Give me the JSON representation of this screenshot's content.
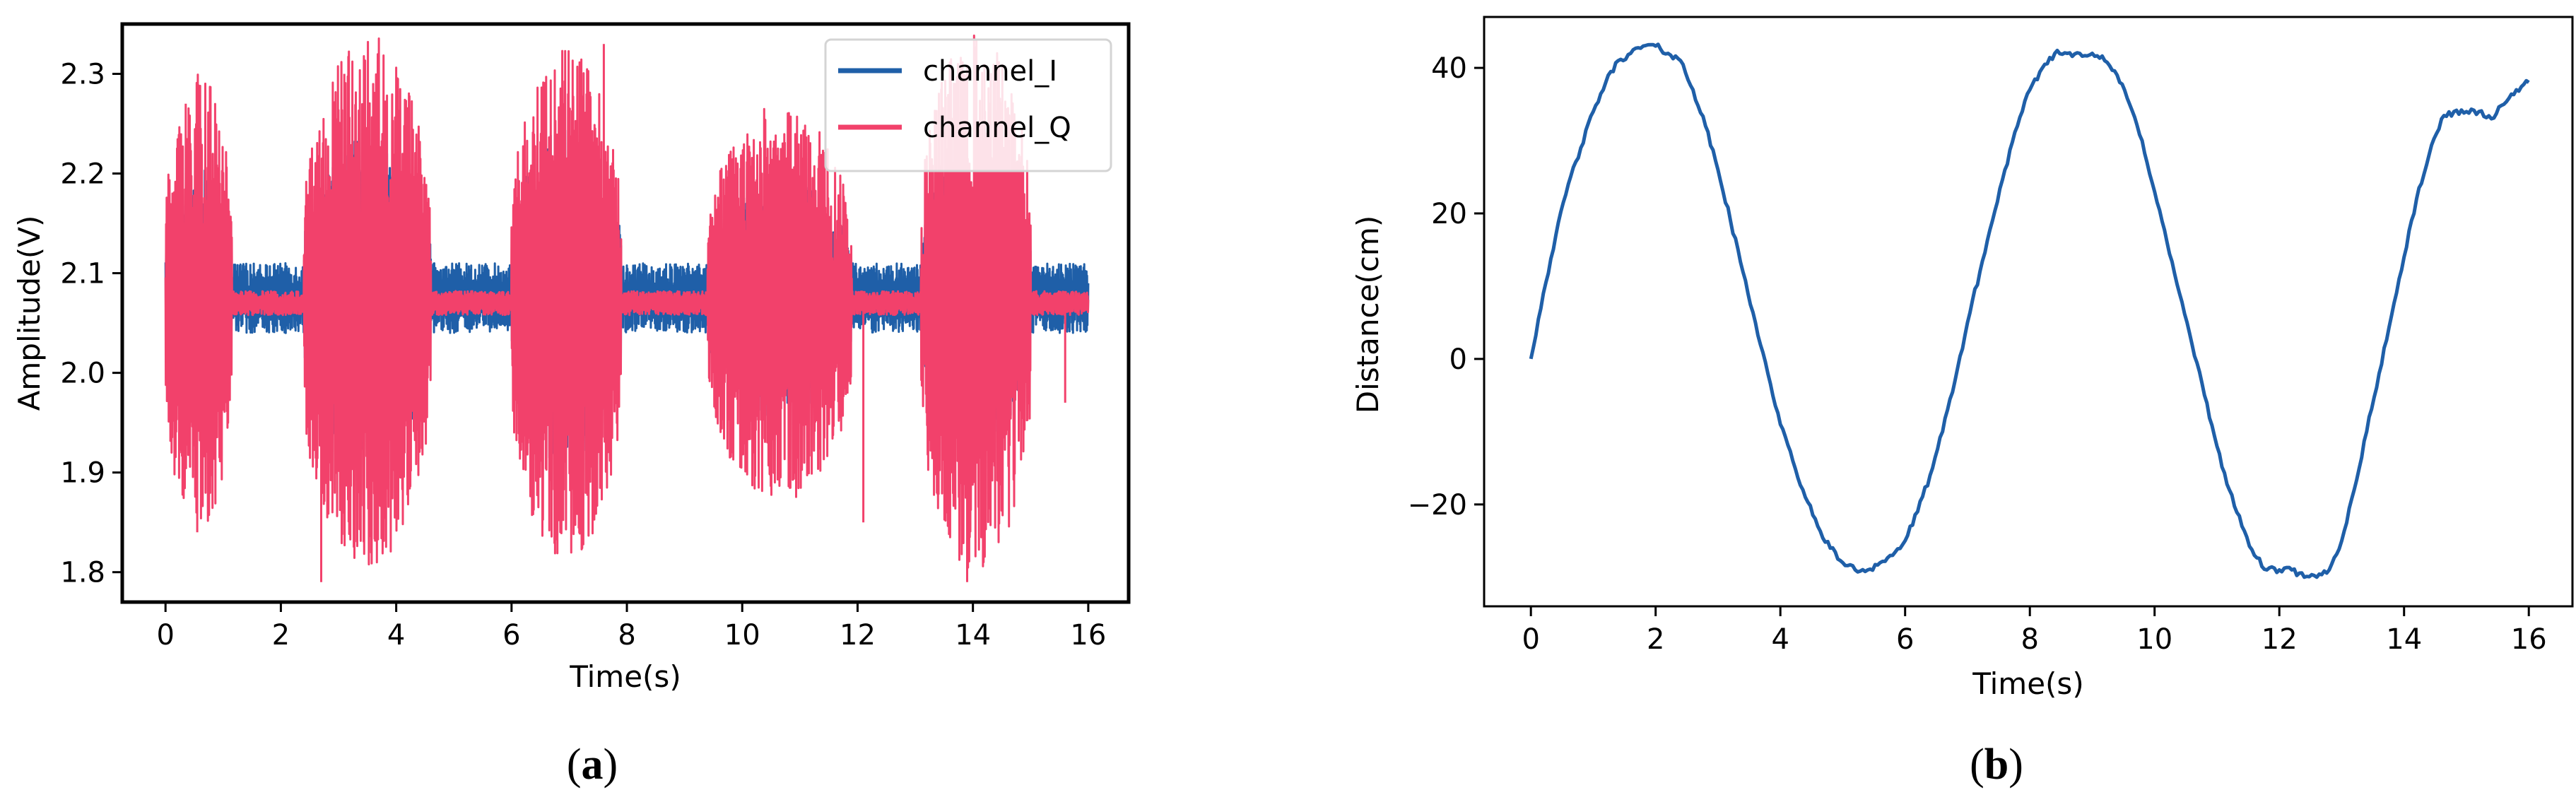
{
  "colors": {
    "channel_I": "#1f5fa8",
    "channel_Q": "#f2416b",
    "distance": "#1f5fa8"
  },
  "chart_data": [
    {
      "type": "line",
      "caption": {
        "open": "(",
        "letter": "a",
        "close": ")"
      },
      "xlabel": "Time(s)",
      "ylabel": "Amplitude(V)",
      "xlim": [
        -0.75,
        16.7
      ],
      "ylim": [
        1.77,
        2.35
      ],
      "xticks": [
        0,
        2,
        4,
        6,
        8,
        10,
        12,
        14,
        16
      ],
      "xtick_labels": [
        "0",
        "2",
        "4",
        "6",
        "8",
        "10",
        "12",
        "14",
        "16"
      ],
      "yticks": [
        1.8,
        1.9,
        2.0,
        2.1,
        2.2,
        2.3
      ],
      "ytick_labels": [
        "1.8",
        "1.9",
        "2.0",
        "2.1",
        "2.2",
        "2.3"
      ],
      "legend": {
        "placement": "top-right",
        "entries": [
          "channel_I",
          "channel_Q"
        ]
      },
      "noise_signal": true,
      "series": [
        {
          "name": "channel_I",
          "center": 2.075,
          "baseline_halfwidth": 0.035,
          "bursts": [
            [
              0.0,
              1.15,
              0.13
            ],
            [
              2.4,
              4.6,
              0.16
            ],
            [
              6.0,
              7.9,
              0.17
            ],
            [
              9.4,
              11.9,
              0.12
            ],
            [
              13.1,
              15.0,
              0.15
            ]
          ]
        },
        {
          "name": "channel_Q",
          "center": 2.07,
          "baseline_halfwidth": 0.012,
          "bursts": [
            [
              0.0,
              1.15,
              0.23
            ],
            [
              2.4,
              4.6,
              0.27
            ],
            [
              6.0,
              7.9,
              0.26
            ],
            [
              9.4,
              11.9,
              0.2
            ],
            [
              13.1,
              15.0,
              0.27
            ]
          ],
          "extremes": [
            [
              2.7,
              1.79
            ],
            [
              2.9,
              2.29
            ],
            [
              3.1,
              2.3
            ],
            [
              7.6,
              2.33
            ],
            [
              13.9,
              1.79
            ],
            [
              14.2,
              2.31
            ],
            [
              0.55,
              1.84
            ],
            [
              0.35,
              2.27
            ],
            [
              12.1,
              1.85
            ],
            [
              15.6,
              1.97
            ]
          ]
        }
      ]
    },
    {
      "type": "line",
      "caption": {
        "open": "(",
        "letter": "b",
        "close": ")"
      },
      "xlabel": "Time(s)",
      "ylabel": "Distance(cm)",
      "xlim": [
        -0.75,
        16.7
      ],
      "ylim": [
        -34,
        47
      ],
      "xticks": [
        0,
        2,
        4,
        6,
        8,
        10,
        12,
        14,
        16
      ],
      "xtick_labels": [
        "0",
        "2",
        "4",
        "6",
        "8",
        "10",
        "12",
        "14",
        "16"
      ],
      "yticks": [
        -20,
        0,
        20,
        40
      ],
      "ytick_labels": [
        "−20",
        "0",
        "20",
        "40"
      ],
      "series": [
        {
          "name": "distance",
          "x": [
            0,
            0.2,
            0.4,
            0.6,
            0.8,
            1.0,
            1.2,
            1.4,
            1.6,
            1.8,
            2.0,
            2.2,
            2.4,
            2.6,
            2.8,
            3.0,
            3.2,
            3.4,
            3.6,
            3.8,
            4.0,
            4.2,
            4.4,
            4.6,
            4.8,
            5.0,
            5.2,
            5.4,
            5.6,
            5.8,
            6.0,
            6.2,
            6.4,
            6.6,
            6.8,
            7.0,
            7.2,
            7.4,
            7.6,
            7.8,
            8.0,
            8.2,
            8.4,
            8.6,
            8.8,
            9.0,
            9.2,
            9.4,
            9.6,
            9.8,
            10.0,
            10.2,
            10.4,
            10.6,
            10.8,
            11.0,
            11.2,
            11.4,
            11.6,
            11.8,
            12.0,
            12.2,
            12.4,
            12.6,
            12.8,
            13.0,
            13.2,
            13.4,
            13.6,
            13.8,
            14.0,
            14.2,
            14.4,
            14.6,
            14.8,
            15.0,
            15.2,
            15.4,
            15.6,
            15.8,
            16.0
          ],
          "y": [
            0,
            9,
            17,
            24,
            29,
            34,
            38,
            41,
            42,
            43,
            43,
            42,
            41,
            37,
            32,
            26,
            19,
            12,
            5,
            -2,
            -9,
            -14,
            -19,
            -23,
            -26,
            -28,
            -29,
            -29,
            -28,
            -27,
            -25,
            -21,
            -16,
            -10,
            -3,
            5,
            12,
            19,
            26,
            32,
            37,
            40,
            42,
            42,
            42,
            42,
            41,
            39,
            35,
            30,
            23,
            16,
            9,
            2,
            -5,
            -12,
            -18,
            -23,
            -27,
            -29,
            -29,
            -29,
            -30,
            -30,
            -29,
            -25,
            -18,
            -10,
            -2,
            6,
            14,
            22,
            28,
            33,
            34,
            34,
            34,
            33,
            35,
            37,
            38
          ]
        }
      ]
    }
  ]
}
